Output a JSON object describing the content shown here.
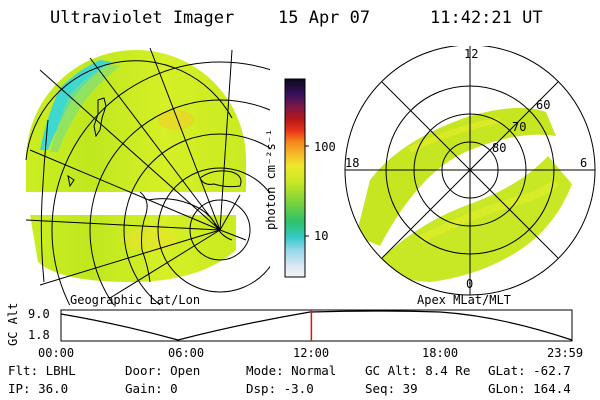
{
  "header": {
    "instrument": "Ultraviolet Imager",
    "date": "15 Apr 07",
    "time": "11:42:21 UT"
  },
  "panels": {
    "left_label": "Geographic Lat/Lon",
    "right_label": "Apex MLat/MLT"
  },
  "colorbar": {
    "unit_label": "photon cm⁻²s⁻¹",
    "tick_100": "100",
    "tick_10": "10"
  },
  "polar": {
    "mlt_12": "12",
    "mlt_18": "18",
    "mlt_6": "6",
    "mlt_0": "0",
    "lat_60": "60",
    "lat_70": "70",
    "lat_80": "80"
  },
  "altitude": {
    "axis_label": "GC Alt",
    "y_top": "9.0",
    "y_bottom": "1.8",
    "times": [
      "00:00",
      "06:00",
      "12:00",
      "18:00",
      "23:59"
    ],
    "current_time_fraction": 0.49
  },
  "info": {
    "flt": "Flt: LBHL",
    "ip": "IP: 36.0",
    "door": "Door: Open",
    "gain": "Gain:  0",
    "mode": "Mode: Normal",
    "dsp": "Dsp:   -3.0",
    "gc_alt": "GC Alt: 8.4 Re",
    "seq": "Seq: 39",
    "glat": "GLat: -62.7",
    "glon": "GLon: 164.4"
  }
}
